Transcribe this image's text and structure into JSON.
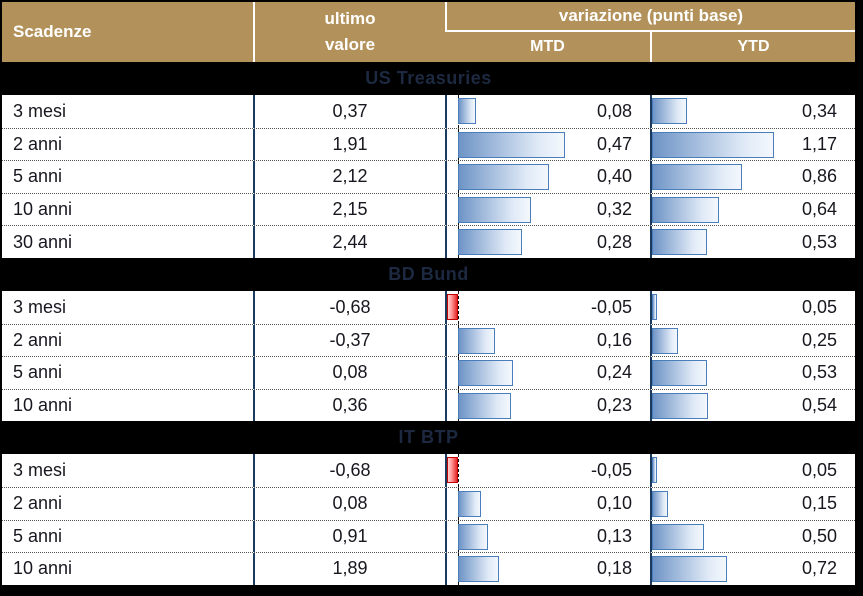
{
  "header": {
    "scadenze": "Scadenze",
    "ultimo_line1": "ultimo",
    "ultimo_line2": "valore",
    "variazione": "variazione (punti base)",
    "mtd": "MTD",
    "ytd": "YTD"
  },
  "colors": {
    "header_bg": "#b2925a",
    "header_text": "#ffffff",
    "section_bar_bg": "#000000",
    "section_title_text": "#1c2940",
    "grid_line_navy": "#1b3a5f",
    "positive_bar_border": "#4a7ebb",
    "positive_bar_fill_dark": "#6e94c6",
    "positive_bar_fill_light": "#f4f8fd",
    "negative_bar_border": "#c00000",
    "negative_bar_fill_dark": "#e62525",
    "negative_bar_fill_light": "#ffcfcf"
  },
  "chart_data": {
    "type": "bar",
    "title": "variazione (punti base)",
    "columns": [
      "Scadenze",
      "ultimo valore",
      "MTD",
      "YTD"
    ],
    "mtd_axis_range": [
      0,
      0.84
    ],
    "ytd_axis_range": [
      0,
      1.95
    ],
    "sections": [
      {
        "title": "US Treasuries",
        "rows": [
          {
            "label": "3 mesi",
            "ultimo_valore": "0,37",
            "mtd": 0.08,
            "mtd_label": "0,08",
            "ytd": 0.34,
            "ytd_label": "0,34"
          },
          {
            "label": "2 anni",
            "ultimo_valore": "1,91",
            "mtd": 0.47,
            "mtd_label": "0,47",
            "ytd": 1.17,
            "ytd_label": "1,17"
          },
          {
            "label": "5 anni",
            "ultimo_valore": "2,12",
            "mtd": 0.4,
            "mtd_label": "0,40",
            "ytd": 0.86,
            "ytd_label": "0,86"
          },
          {
            "label": "10 anni",
            "ultimo_valore": "2,15",
            "mtd": 0.32,
            "mtd_label": "0,32",
            "ytd": 0.64,
            "ytd_label": "0,64"
          },
          {
            "label": "30 anni",
            "ultimo_valore": "2,44",
            "mtd": 0.28,
            "mtd_label": "0,28",
            "ytd": 0.53,
            "ytd_label": "0,53"
          }
        ]
      },
      {
        "title": "BD Bund",
        "rows": [
          {
            "label": "3 mesi",
            "ultimo_valore": "-0,68",
            "mtd": -0.05,
            "mtd_label": "-0,05",
            "ytd": 0.05,
            "ytd_label": "0,05"
          },
          {
            "label": "2 anni",
            "ultimo_valore": "-0,37",
            "mtd": 0.16,
            "mtd_label": "0,16",
            "ytd": 0.25,
            "ytd_label": "0,25"
          },
          {
            "label": "5 anni",
            "ultimo_valore": "0,08",
            "mtd": 0.24,
            "mtd_label": "0,24",
            "ytd": 0.53,
            "ytd_label": "0,53"
          },
          {
            "label": "10 anni",
            "ultimo_valore": "0,36",
            "mtd": 0.23,
            "mtd_label": "0,23",
            "ytd": 0.54,
            "ytd_label": "0,54"
          }
        ]
      },
      {
        "title": "IT BTP",
        "rows": [
          {
            "label": "3 mesi",
            "ultimo_valore": "-0,68",
            "mtd": -0.05,
            "mtd_label": "-0,05",
            "ytd": 0.05,
            "ytd_label": "0,05"
          },
          {
            "label": "2 anni",
            "ultimo_valore": "0,08",
            "mtd": 0.1,
            "mtd_label": "0,10",
            "ytd": 0.15,
            "ytd_label": "0,15"
          },
          {
            "label": "5 anni",
            "ultimo_valore": "0,91",
            "mtd": 0.13,
            "mtd_label": "0,13",
            "ytd": 0.5,
            "ytd_label": "0,50"
          },
          {
            "label": "10 anni",
            "ultimo_valore": "1,89",
            "mtd": 0.18,
            "mtd_label": "0,18",
            "ytd": 0.72,
            "ytd_label": "0,72"
          }
        ]
      }
    ]
  }
}
